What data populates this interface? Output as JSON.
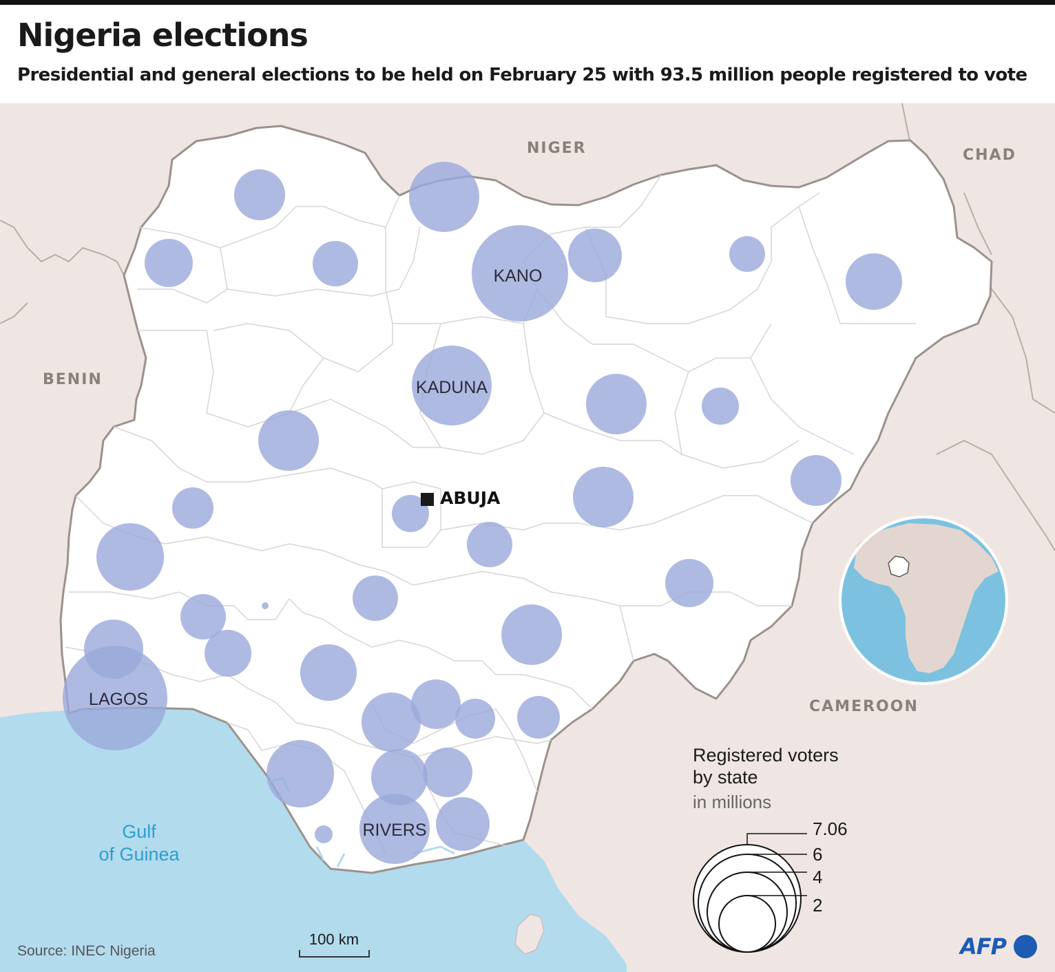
{
  "header": {
    "title": "Nigeria elections",
    "subtitle": "Presidential and general elections to be held on February 25 with 93.5 million people registered to vote"
  },
  "map": {
    "countries": [
      "NIGER",
      "CHAD",
      "BENIN",
      "CAMEROON"
    ],
    "sea": [
      "Gulf",
      "of Guinea"
    ],
    "capital": "ABUJA",
    "state_labels": [
      "KANO",
      "KADUNA",
      "LAGOS",
      "RIVERS"
    ],
    "colors": {
      "land_neighbors": "#efe6e3",
      "nigeria": "#ffffff",
      "sea": "#b3dbee",
      "bubble": "#9aa9db",
      "border": "#9b918c",
      "state_border": "#d6d6d6",
      "sea_text": "#2aa0cf"
    }
  },
  "legend": {
    "title_line1": "Registered voters",
    "title_line2": "by state",
    "unit": "in millions",
    "values": [
      "7.06",
      "6",
      "4",
      "2"
    ]
  },
  "scale_bar": {
    "label": "100 km"
  },
  "footer": {
    "source": "Source: INEC Nigeria",
    "logo_text": "AFP"
  }
}
